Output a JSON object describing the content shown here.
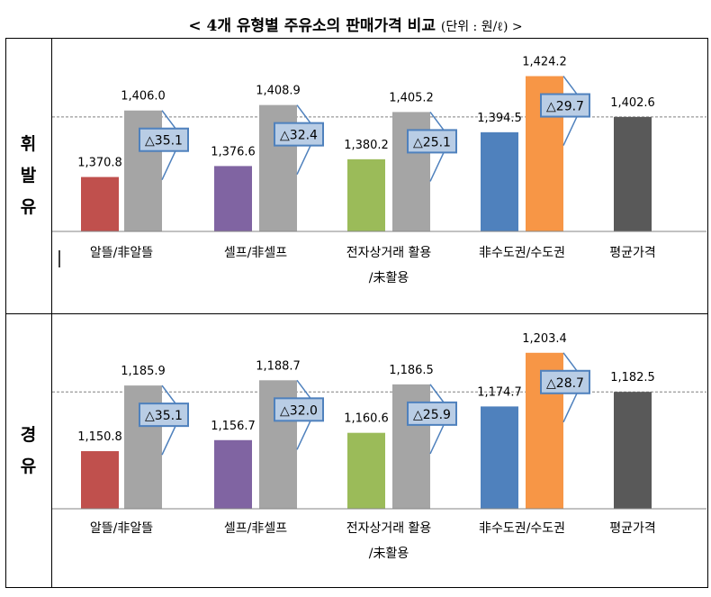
{
  "title": {
    "main": "< 4개 유형별 주유소의 판매가격 비교",
    "unit": "(단위 : 원/ℓ) >"
  },
  "chart_data": [
    {
      "type": "bar",
      "panel_label": [
        "휘",
        "발",
        "유"
      ],
      "categories": [
        [
          "알뜰/非알뜰"
        ],
        [
          "셀프/非셀프"
        ],
        [
          "전자상거래 활용",
          "/未활용"
        ],
        [
          "非수도권/수도권"
        ],
        [
          "평균가격"
        ]
      ],
      "groups": [
        {
          "values": [
            1370.8,
            1406.0
          ],
          "labels": [
            "1,370.8",
            "1,406.0"
          ],
          "colors": [
            "#c0504d",
            "#a5a5a5"
          ],
          "diff": "△35.1"
        },
        {
          "values": [
            1376.6,
            1408.9
          ],
          "labels": [
            "1,376.6",
            "1,408.9"
          ],
          "colors": [
            "#8064a2",
            "#a5a5a5"
          ],
          "diff": "△32.4"
        },
        {
          "values": [
            1380.2,
            1405.2
          ],
          "labels": [
            "1,380.2",
            "1,405.2"
          ],
          "colors": [
            "#9bbb59",
            "#a5a5a5"
          ],
          "diff": "△25.1"
        },
        {
          "values": [
            1394.5,
            1424.2
          ],
          "labels": [
            "1,394.5",
            "1,424.2"
          ],
          "colors": [
            "#4f81bd",
            "#f79646"
          ],
          "diff": "△29.7"
        },
        {
          "values": [
            1402.6
          ],
          "labels": [
            "1,402.6"
          ],
          "colors": [
            "#595959"
          ],
          "diff": ""
        }
      ],
      "reference_line": 1402.6,
      "ylim": [
        1342,
        1444
      ],
      "grid": false
    },
    {
      "type": "bar",
      "panel_label": [
        "경",
        "유"
      ],
      "categories": [
        [
          "알뜰/非알뜰"
        ],
        [
          "셀프/非셀프"
        ],
        [
          "전자상거래 활용",
          "/未활용"
        ],
        [
          "非수도권/수도권"
        ],
        [
          "평균가격"
        ]
      ],
      "groups": [
        {
          "values": [
            1150.8,
            1185.9
          ],
          "labels": [
            "1,150.8",
            "1,185.9"
          ],
          "colors": [
            "#c0504d",
            "#a5a5a5"
          ],
          "diff": "△35.1"
        },
        {
          "values": [
            1156.7,
            1188.7
          ],
          "labels": [
            "1,156.7",
            "1,188.7"
          ],
          "colors": [
            "#8064a2",
            "#a5a5a5"
          ],
          "diff": "△32.0"
        },
        {
          "values": [
            1160.6,
            1186.5
          ],
          "labels": [
            "1,160.6",
            "1,186.5"
          ],
          "colors": [
            "#9bbb59",
            "#a5a5a5"
          ],
          "diff": "△25.9"
        },
        {
          "values": [
            1174.7,
            1203.4
          ],
          "labels": [
            "1,174.7",
            "1,203.4"
          ],
          "colors": [
            "#4f81bd",
            "#f79646"
          ],
          "diff": "△28.7"
        },
        {
          "values": [
            1182.5
          ],
          "labels": [
            "1,182.5"
          ],
          "colors": [
            "#595959"
          ],
          "diff": ""
        }
      ],
      "reference_line": 1182.5,
      "ylim": [
        1120,
        1224
      ],
      "grid": false
    }
  ],
  "colors": {
    "callout_fill": "#b9cde5",
    "callout_border": "#4f81bd",
    "axis": "#868686"
  }
}
